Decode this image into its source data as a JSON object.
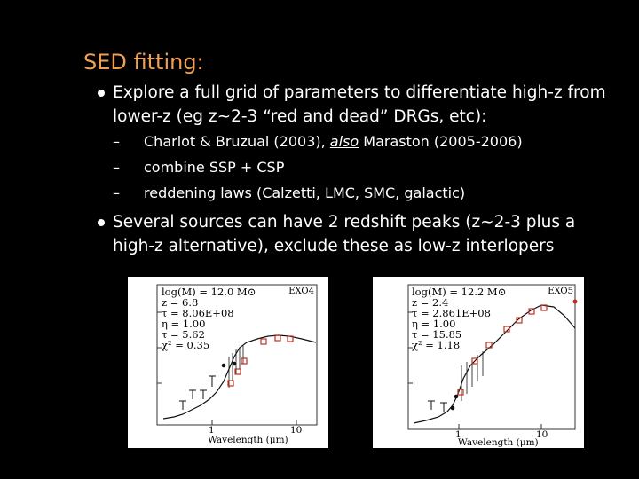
{
  "slide": {
    "title": "SED fitting:",
    "bullets": [
      {
        "line1": "Explore a full grid of parameters to differentiate high-z from",
        "line2": "lower-z (eg z~2-3 “red and dead” DRGs, etc):"
      },
      {
        "line1": "Several sources can have 2 redshift peaks (z~2-3 plus a",
        "line2": "high-z alternative), exclude these as low-z interlopers"
      }
    ],
    "subitems": [
      {
        "dash": "–",
        "pre": "Charlot & Bruzual (2003), ",
        "em": "also",
        "post": " Maraston (2005-2006)"
      },
      {
        "dash": "–",
        "text": "combine SSP + CSP"
      },
      {
        "dash": "–",
        "text": "reddening laws (Calzetti, LMC, SMC, galactic)"
      }
    ]
  },
  "figures": [
    {
      "tag": "EXO4",
      "params": [
        "log(M) = 12.0 M⊙",
        "z   = 6.8",
        "τ   = 8.06E+08",
        "η   = 1.00",
        "τ   = 5.62",
        "χ²  = 0.35"
      ],
      "xticks": [
        "1",
        "10"
      ],
      "xlabel": "Wavelength (μm)"
    },
    {
      "tag": "EXO5",
      "params": [
        "log(M) = 12.2 M⊙",
        "z   = 2.4",
        "τ   = 2.861E+08",
        "η   = 1.00",
        "τ   = 15.85",
        "χ²  = 1.18"
      ],
      "xticks": [
        "1",
        "10"
      ],
      "xlabel": "Wavelength (μm)"
    }
  ],
  "colors": {
    "title": "#f0a050",
    "text": "#ffffff",
    "background": "#000000",
    "marker": "#c03020"
  }
}
